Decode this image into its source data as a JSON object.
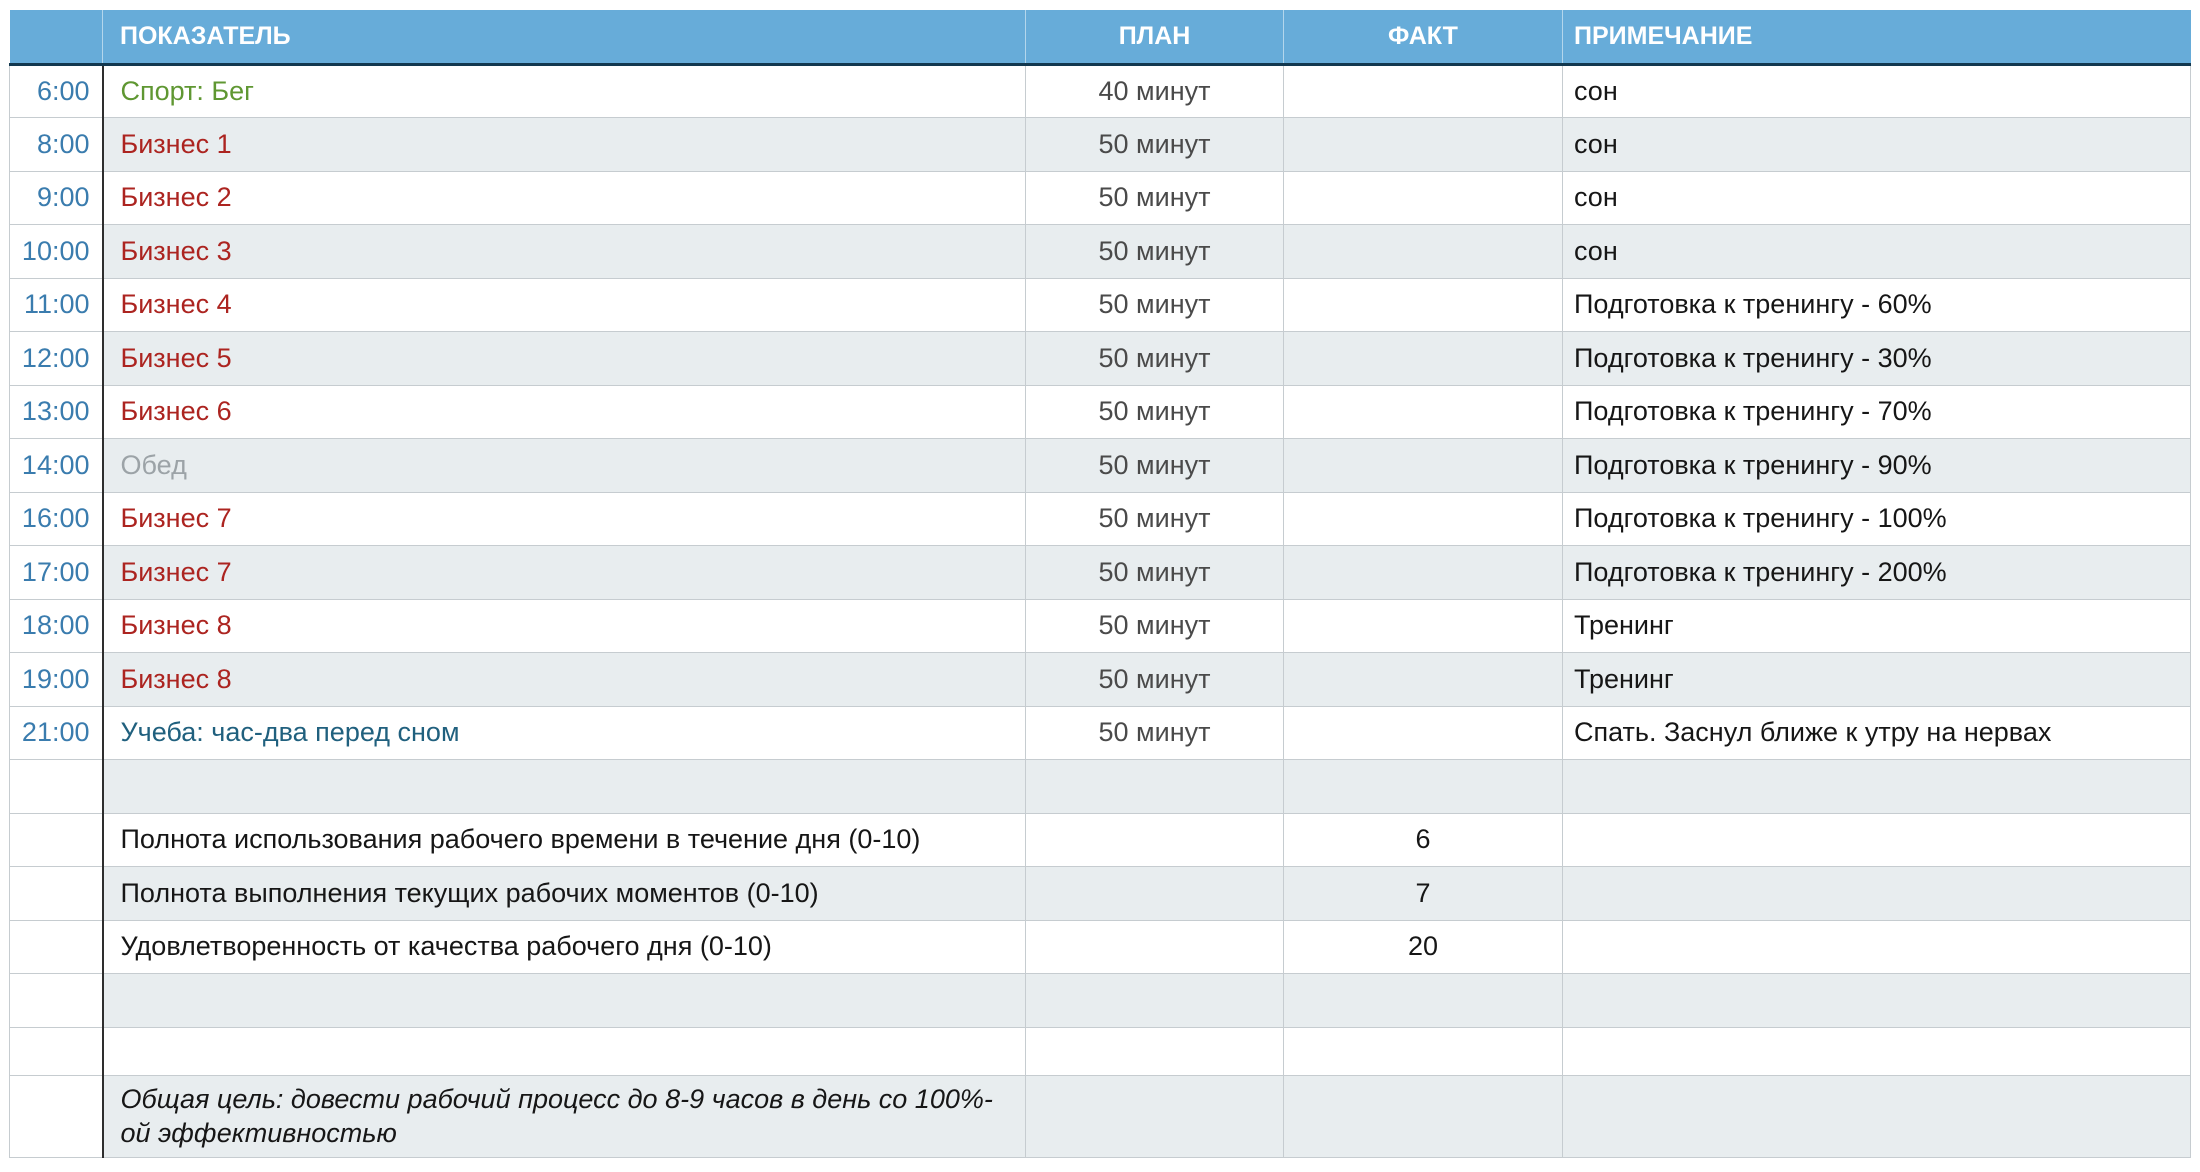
{
  "table": {
    "headers": {
      "time": "",
      "indicator": "ПОКАЗАТЕЛЬ",
      "plan": "ПЛАН",
      "fact": "ФАКТ",
      "note": "ПРИМЕЧАНИЕ"
    },
    "rows": [
      {
        "type": "entry",
        "time": "6:00",
        "label": "Спорт: Бег",
        "label_color": "green",
        "plan": "40 минут",
        "fact": "",
        "note": "сон"
      },
      {
        "type": "entry",
        "time": "8:00",
        "label": "Бизнес 1",
        "label_color": "red",
        "plan": "50 минут",
        "fact": "",
        "note": "сон"
      },
      {
        "type": "entry",
        "time": "9:00",
        "label": "Бизнес 2",
        "label_color": "red",
        "plan": "50 минут",
        "fact": "",
        "note": "сон"
      },
      {
        "type": "entry",
        "time": "10:00",
        "label": "Бизнес 3",
        "label_color": "red",
        "plan": "50 минут",
        "fact": "",
        "note": "сон"
      },
      {
        "type": "entry",
        "time": "11:00",
        "label": "Бизнес 4",
        "label_color": "red",
        "plan": "50 минут",
        "fact": "",
        "note": "Подготовка к тренингу - 60%"
      },
      {
        "type": "entry",
        "time": "12:00",
        "label": "Бизнес 5",
        "label_color": "red",
        "plan": "50 минут",
        "fact": "",
        "note": "Подготовка к тренингу - 30%"
      },
      {
        "type": "entry",
        "time": "13:00",
        "label": "Бизнес 6",
        "label_color": "red",
        "plan": "50 минут",
        "fact": "",
        "note": "Подготовка к тренингу - 70%"
      },
      {
        "type": "entry",
        "time": "14:00",
        "label": "Обед",
        "label_color": "gray",
        "plan": "50 минут",
        "fact": "",
        "note": "Подготовка к тренингу - 90%"
      },
      {
        "type": "entry",
        "time": "16:00",
        "label": "Бизнес 7",
        "label_color": "red",
        "plan": "50 минут",
        "fact": "",
        "note": "Подготовка к тренингу - 100%"
      },
      {
        "type": "entry",
        "time": "17:00",
        "label": "Бизнес 7",
        "label_color": "red",
        "plan": "50 минут",
        "fact": "",
        "note": "Подготовка к тренингу - 200%"
      },
      {
        "type": "entry",
        "time": "18:00",
        "label": "Бизнес 8",
        "label_color": "red",
        "plan": "50 минут",
        "fact": "",
        "note": "Тренинг"
      },
      {
        "type": "entry",
        "time": "19:00",
        "label": "Бизнес 8",
        "label_color": "red",
        "plan": "50 минут",
        "fact": "",
        "note": "Тренинг"
      },
      {
        "type": "entry",
        "time": "21:00",
        "label": "Учеба: час-два перед сном",
        "label_color": "teal",
        "plan": "50 минут",
        "fact": "",
        "note": "Спать. Заснул ближе к утру на нервах"
      },
      {
        "type": "empty"
      },
      {
        "type": "score",
        "label": "Полнота использования рабочего времени в течение дня (0-10)",
        "fact": "6"
      },
      {
        "type": "score",
        "label": "Полнота выполнения текущих рабочих моментов (0-10)",
        "fact": "7"
      },
      {
        "type": "score",
        "label": "Удовлетворенность от качества рабочего дня (0-10)",
        "fact": "20"
      },
      {
        "type": "empty"
      },
      {
        "type": "empty",
        "short": true
      },
      {
        "type": "goal",
        "label": "Общая цель: довести рабочий процесс до 8-9 часов в день со 100%-ой эффективностью"
      }
    ]
  },
  "colors": {
    "header_bg": "#67ACD9",
    "header_text": "#FFFFFF",
    "header_border": "#12384F",
    "stripe": "#E8EDEF",
    "grid": "#C6CCD0",
    "time_divider": "#2E2E2E",
    "time_text": "#3A7CAE",
    "red": "#AC2420",
    "green": "#5F9732",
    "gray": "#9CA3A7",
    "teal": "#20607E",
    "plan_text": "#4A4A4A",
    "text": "#161616"
  }
}
